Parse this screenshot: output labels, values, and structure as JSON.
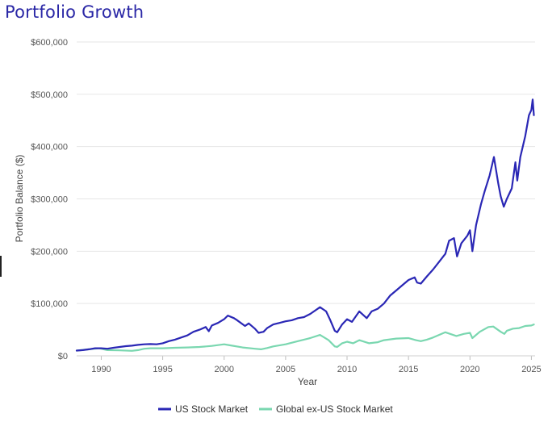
{
  "chart_data": {
    "type": "line",
    "title": "Portfolio Growth",
    "xlabel": "Year",
    "ylabel": "Portfolio Balance ($)",
    "xlim": [
      1988,
      2025.3
    ],
    "ylim": [
      0,
      600000
    ],
    "x_ticks": [
      {
        "value": 1990,
        "label": "1990"
      },
      {
        "value": 1995,
        "label": "1995"
      },
      {
        "value": 2000,
        "label": "2000"
      },
      {
        "value": 2005,
        "label": "2005"
      },
      {
        "value": 2010,
        "label": "2010"
      },
      {
        "value": 2015,
        "label": "2015"
      },
      {
        "value": 2020,
        "label": "2020"
      },
      {
        "value": 2025,
        "label": "2025"
      }
    ],
    "y_ticks": [
      {
        "value": 0,
        "label": "$0"
      },
      {
        "value": 100000,
        "label": "$100,000"
      },
      {
        "value": 200000,
        "label": "$200,000"
      },
      {
        "value": 300000,
        "label": "$300,000"
      },
      {
        "value": 400000,
        "label": "$400,000"
      },
      {
        "value": 500000,
        "label": "$500,000"
      },
      {
        "value": 600000,
        "label": "$600,000"
      }
    ],
    "grid": true,
    "legend_position": "bottom-center",
    "series": [
      {
        "name": "US Stock Market",
        "color": "#2a27b5",
        "points": [
          [
            1988.0,
            10000
          ],
          [
            1988.5,
            11000
          ],
          [
            1989.0,
            12500
          ],
          [
            1989.5,
            14500
          ],
          [
            1990.0,
            14500
          ],
          [
            1990.5,
            13500
          ],
          [
            1991.0,
            15500
          ],
          [
            1991.5,
            17000
          ],
          [
            1992.0,
            18500
          ],
          [
            1992.5,
            19500
          ],
          [
            1993.0,
            21000
          ],
          [
            1993.5,
            22000
          ],
          [
            1994.0,
            22500
          ],
          [
            1994.5,
            22000
          ],
          [
            1995.0,
            24000
          ],
          [
            1995.5,
            28000
          ],
          [
            1996.0,
            31000
          ],
          [
            1996.5,
            35000
          ],
          [
            1997.0,
            39000
          ],
          [
            1997.5,
            46000
          ],
          [
            1998.0,
            50000
          ],
          [
            1998.5,
            55000
          ],
          [
            1998.75,
            47000
          ],
          [
            1999.0,
            58000
          ],
          [
            1999.5,
            63000
          ],
          [
            2000.0,
            70000
          ],
          [
            2000.3,
            77000
          ],
          [
            2000.8,
            72000
          ],
          [
            2001.0,
            69000
          ],
          [
            2001.7,
            57000
          ],
          [
            2002.0,
            62000
          ],
          [
            2002.5,
            52000
          ],
          [
            2002.8,
            44000
          ],
          [
            2003.2,
            46000
          ],
          [
            2003.5,
            53000
          ],
          [
            2004.0,
            60000
          ],
          [
            2004.5,
            63000
          ],
          [
            2005.0,
            66000
          ],
          [
            2005.5,
            68000
          ],
          [
            2006.0,
            72000
          ],
          [
            2006.5,
            74000
          ],
          [
            2007.0,
            80000
          ],
          [
            2007.8,
            93000
          ],
          [
            2008.3,
            85000
          ],
          [
            2008.6,
            70000
          ],
          [
            2009.0,
            48000
          ],
          [
            2009.2,
            45000
          ],
          [
            2009.6,
            60000
          ],
          [
            2010.0,
            70000
          ],
          [
            2010.4,
            65000
          ],
          [
            2011.0,
            85000
          ],
          [
            2011.6,
            72000
          ],
          [
            2012.0,
            85000
          ],
          [
            2012.5,
            90000
          ],
          [
            2013.0,
            100000
          ],
          [
            2013.5,
            115000
          ],
          [
            2014.0,
            125000
          ],
          [
            2014.5,
            135000
          ],
          [
            2015.0,
            145000
          ],
          [
            2015.5,
            150000
          ],
          [
            2015.7,
            140000
          ],
          [
            2016.0,
            138000
          ],
          [
            2016.5,
            152000
          ],
          [
            2017.0,
            165000
          ],
          [
            2017.5,
            180000
          ],
          [
            2018.0,
            195000
          ],
          [
            2018.3,
            220000
          ],
          [
            2018.7,
            225000
          ],
          [
            2018.95,
            190000
          ],
          [
            2019.3,
            215000
          ],
          [
            2019.8,
            230000
          ],
          [
            2020.0,
            240000
          ],
          [
            2020.2,
            200000
          ],
          [
            2020.5,
            250000
          ],
          [
            2020.9,
            290000
          ],
          [
            2021.2,
            315000
          ],
          [
            2021.6,
            345000
          ],
          [
            2021.95,
            380000
          ],
          [
            2022.3,
            330000
          ],
          [
            2022.5,
            305000
          ],
          [
            2022.75,
            285000
          ],
          [
            2023.0,
            300000
          ],
          [
            2023.4,
            320000
          ],
          [
            2023.7,
            370000
          ],
          [
            2023.85,
            335000
          ],
          [
            2024.1,
            380000
          ],
          [
            2024.5,
            420000
          ],
          [
            2024.8,
            460000
          ],
          [
            2025.0,
            470000
          ],
          [
            2025.1,
            490000
          ],
          [
            2025.2,
            460000
          ]
        ]
      },
      {
        "name": "Global ex-US Stock Market",
        "color": "#7ad7b0",
        "points": [
          [
            1988.0,
            10000
          ],
          [
            1989.0,
            12500
          ],
          [
            1989.8,
            14500
          ],
          [
            1990.5,
            11000
          ],
          [
            1991.5,
            10500
          ],
          [
            1992.5,
            9500
          ],
          [
            1993.0,
            11000
          ],
          [
            1993.5,
            13500
          ],
          [
            1994.0,
            14500
          ],
          [
            1995.0,
            14500
          ],
          [
            1996.0,
            15500
          ],
          [
            1997.0,
            16000
          ],
          [
            1998.0,
            17000
          ],
          [
            1999.0,
            19000
          ],
          [
            2000.0,
            22000
          ],
          [
            2000.5,
            20000
          ],
          [
            2001.5,
            16000
          ],
          [
            2002.5,
            13500
          ],
          [
            2003.0,
            12500
          ],
          [
            2003.5,
            15000
          ],
          [
            2004.0,
            18000
          ],
          [
            2005.0,
            22000
          ],
          [
            2006.0,
            28000
          ],
          [
            2007.0,
            34000
          ],
          [
            2007.8,
            40000
          ],
          [
            2008.5,
            30000
          ],
          [
            2009.0,
            18000
          ],
          [
            2009.2,
            17000
          ],
          [
            2009.6,
            24000
          ],
          [
            2010.0,
            27000
          ],
          [
            2010.5,
            24000
          ],
          [
            2011.0,
            30000
          ],
          [
            2011.8,
            24000
          ],
          [
            2012.5,
            26000
          ],
          [
            2013.0,
            30000
          ],
          [
            2014.0,
            33000
          ],
          [
            2015.0,
            34000
          ],
          [
            2015.6,
            30000
          ],
          [
            2016.0,
            28000
          ],
          [
            2016.5,
            31000
          ],
          [
            2017.0,
            35000
          ],
          [
            2018.0,
            45000
          ],
          [
            2018.9,
            38000
          ],
          [
            2019.5,
            42000
          ],
          [
            2020.0,
            44000
          ],
          [
            2020.2,
            34000
          ],
          [
            2020.8,
            46000
          ],
          [
            2021.5,
            55000
          ],
          [
            2021.9,
            56000
          ],
          [
            2022.5,
            46000
          ],
          [
            2022.8,
            42000
          ],
          [
            2023.0,
            48000
          ],
          [
            2023.5,
            52000
          ],
          [
            2024.0,
            53000
          ],
          [
            2024.5,
            57000
          ],
          [
            2025.0,
            58000
          ],
          [
            2025.2,
            60000
          ]
        ]
      }
    ]
  }
}
